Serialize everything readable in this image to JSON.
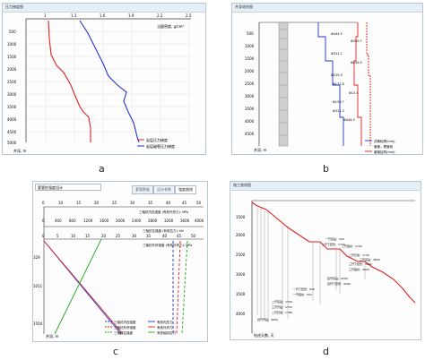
{
  "captions": {
    "a": "a",
    "b": "b",
    "c": "c",
    "d": "d"
  },
  "panel_a": {
    "title": "压力梯度图",
    "top_axis": [
      "1",
      "1.3",
      "1.6",
      "1.9",
      "2.2",
      "2.5"
    ],
    "axis_title": "当量密度, g/cm³",
    "depth_ticks": [
      "500",
      "1000",
      "1500",
      "2000",
      "2500",
      "3000",
      "3500",
      "4000",
      "4500",
      "5000"
    ],
    "depth_label": "井深, m",
    "legend": [
      "岩层压力梯度",
      "岩层破裂压力梯度"
    ]
  },
  "panel_b": {
    "title": "井身结构图",
    "depth_ticks": [
      "500",
      "1000",
      "1500",
      "2000",
      "2500",
      "3000",
      "3500",
      "4000",
      "4500"
    ],
    "casing_labels": [
      "Φ444.5",
      "Φ339.7",
      "Φ311.1",
      "Φ244.5",
      "Φ215.9",
      "Φ177.8",
      "Φ13.4",
      "Φ139.7",
      "Φ311.3",
      "Φ444.5"
    ],
    "depth_label": "井深, m",
    "legend": [
      "井筒轮廓(mm)",
      "套管、尾管段",
      "套管结构(mm)"
    ]
  },
  "panel_c": {
    "field": "套管柱强度设计",
    "tabs": [
      "套管数据",
      "设计参数",
      "强度曲线"
    ],
    "axis1_ticks": [
      "0",
      "10",
      "15",
      "20",
      "25",
      "30",
      "35",
      "40",
      "45",
      "50"
    ],
    "axis1_title": "三轴抗内压强度 (有效外挤力): MPa",
    "axis2_ticks": [
      "0",
      "400",
      "800",
      "1200",
      "1600",
      "2000",
      "2400",
      "2800",
      "3200",
      "3600",
      "4000"
    ],
    "axis2_title": "三轴抗拉强度 (有效拉力): kN",
    "axis3_ticks": [
      "0",
      "5",
      "10",
      "15",
      "20",
      "25",
      "30",
      "35",
      "40",
      "45",
      "50"
    ],
    "axis3_title": "三轴抗外挤强度 (有效外挤力): MPa",
    "depth_ticks": [
      "329",
      "1011",
      "1504"
    ],
    "depth_label": "井深, m",
    "legend": [
      "三轴抗内压强度",
      "三轴抗外挤强度",
      "三轴抗拉强度",
      "有效内压力",
      "有效外挤力",
      "有效轴向拉力"
    ]
  },
  "panel_d": {
    "title": "施工曲线图",
    "depth_ticks": [
      "1500",
      "2000",
      "2500",
      "3000",
      "3500",
      "4000"
    ],
    "labels": [
      "一开完钻：500",
      "二开下套管：1700",
      "二开固井：1704",
      "二开扫塞：1730",
      "三开完钻：3850",
      "三开下套管：3900",
      "三开固井：3920",
      "四开完钻：4200",
      "四开下套管：4400",
      "一开下套管：500",
      "一开固井：504",
      "二开完钻：1700",
      "三开开钻：1754",
      "二开扫塞：1788",
      "四开开钻：3954"
    ],
    "xlabel": "钻进天数, 天"
  }
}
